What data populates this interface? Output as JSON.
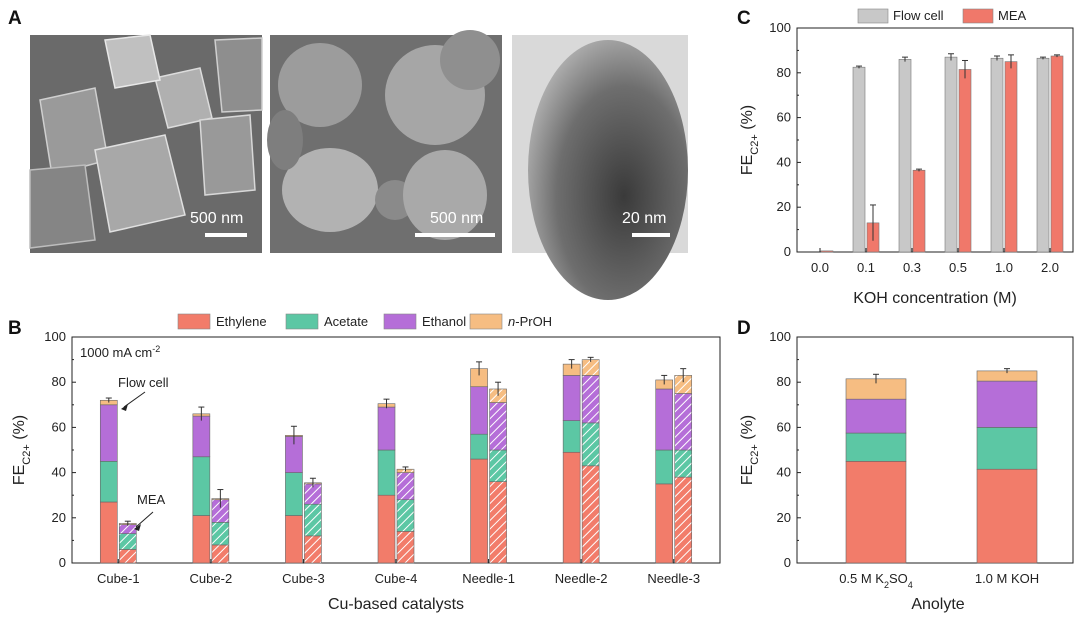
{
  "panels": {
    "a": "A",
    "b": "B",
    "c": "C",
    "d": "D"
  },
  "colors": {
    "ethylene": "#f27c6a",
    "acetate": "#5cc7a4",
    "ethanol": "#b56ed8",
    "npoh": "#f6bd82",
    "flow": "#c8c8c8",
    "mea": "#f0786a"
  },
  "micrographs": [
    {
      "name": "cube-sem",
      "scale": "500 nm"
    },
    {
      "name": "needle-sem",
      "scale": "500 nm"
    },
    {
      "name": "needle-tem",
      "scale": "20 nm"
    }
  ],
  "chart_data": [
    {
      "panel": "B",
      "type": "bar",
      "stacked": true,
      "categories": [
        "Cube-1",
        "Cube-2",
        "Cube-3",
        "Cube-4",
        "Needle-1",
        "Needle-2",
        "Needle-3"
      ],
      "legend": [
        {
          "label": "Ethylene",
          "color": "#f27c6a"
        },
        {
          "label": "Acetate",
          "color": "#5cc7a4"
        },
        {
          "label": "Ethanol",
          "color": "#b56ed8"
        },
        {
          "label": "n-PrOH",
          "color": "#f6bd82"
        }
      ],
      "flow_cell": {
        "ethylene": [
          27,
          21,
          21,
          30,
          46,
          49,
          35
        ],
        "acetate": [
          18,
          26,
          19,
          20,
          11,
          14,
          15
        ],
        "ethanol": [
          25,
          18,
          16,
          19,
          21,
          20,
          27
        ],
        "npoh": [
          2,
          1,
          0.5,
          1.5,
          8,
          5,
          4
        ],
        "error": [
          1,
          3,
          4,
          2,
          3,
          2,
          2
        ]
      },
      "mea": {
        "ethylene": [
          6,
          8,
          12,
          14,
          36,
          43,
          38
        ],
        "acetate": [
          7,
          10,
          14,
          14,
          14,
          19,
          12
        ],
        "ethanol": [
          4,
          10,
          9,
          12,
          21,
          21,
          25
        ],
        "npoh": [
          0.5,
          0.5,
          0.5,
          1.5,
          6,
          7,
          8
        ],
        "error": [
          1,
          4,
          2,
          1,
          3,
          1,
          3
        ]
      },
      "title": "1000 mA cm",
      "title_sup": "-2",
      "annotation_flow": "Flow cell",
      "annotation_mea": "MEA",
      "xlabel": "Cu-based catalysts",
      "ylabel_main": "FE",
      "ylabel_sub": "C2+",
      "ylabel_unit": " (%)",
      "ylim": [
        0,
        100
      ],
      "yticks": [
        0,
        20,
        40,
        60,
        80,
        100
      ]
    },
    {
      "panel": "C",
      "type": "bar",
      "categories": [
        "0.0",
        "0.1",
        "0.3",
        "0.5",
        "1.0",
        "2.0"
      ],
      "series": [
        {
          "name": "Flow cell",
          "color": "#c8c8c8",
          "values": [
            null,
            82.5,
            86,
            87,
            86.5,
            86.5
          ],
          "error": [
            0,
            0.5,
            1,
            1.5,
            1,
            0.5
          ]
        },
        {
          "name": "MEA",
          "color": "#f0786a",
          "values": [
            0.5,
            13,
            36.5,
            81.5,
            85,
            87.5
          ],
          "error": [
            0,
            8,
            0.5,
            4,
            3,
            0.5
          ]
        }
      ],
      "xlabel": "KOH concentration (M)",
      "ylabel_main": "FE",
      "ylabel_sub": "C2+",
      "ylabel_unit": " (%)",
      "ylim": [
        0,
        100
      ],
      "yticks": [
        0,
        20,
        40,
        60,
        80,
        100
      ]
    },
    {
      "panel": "D",
      "type": "bar",
      "stacked": true,
      "categories": [
        {
          "main": "0.5 M K",
          "sub": "2",
          "rest": "SO",
          "sub2": "4"
        },
        {
          "main": "1.0 M KOH",
          "sub": "",
          "rest": "",
          "sub2": ""
        }
      ],
      "stacks": {
        "ethylene": [
          45,
          41.5
        ],
        "acetate": [
          12.5,
          18.5
        ],
        "ethanol": [
          15,
          20.5
        ],
        "npoh": [
          9,
          4.5
        ],
        "error": [
          2,
          1
        ]
      },
      "xlabel": "Anolyte",
      "ylabel_main": "FE",
      "ylabel_sub": "C2+",
      "ylabel_unit": " (%)",
      "ylim": [
        0,
        100
      ],
      "yticks": [
        0,
        20,
        40,
        60,
        80,
        100
      ]
    }
  ]
}
